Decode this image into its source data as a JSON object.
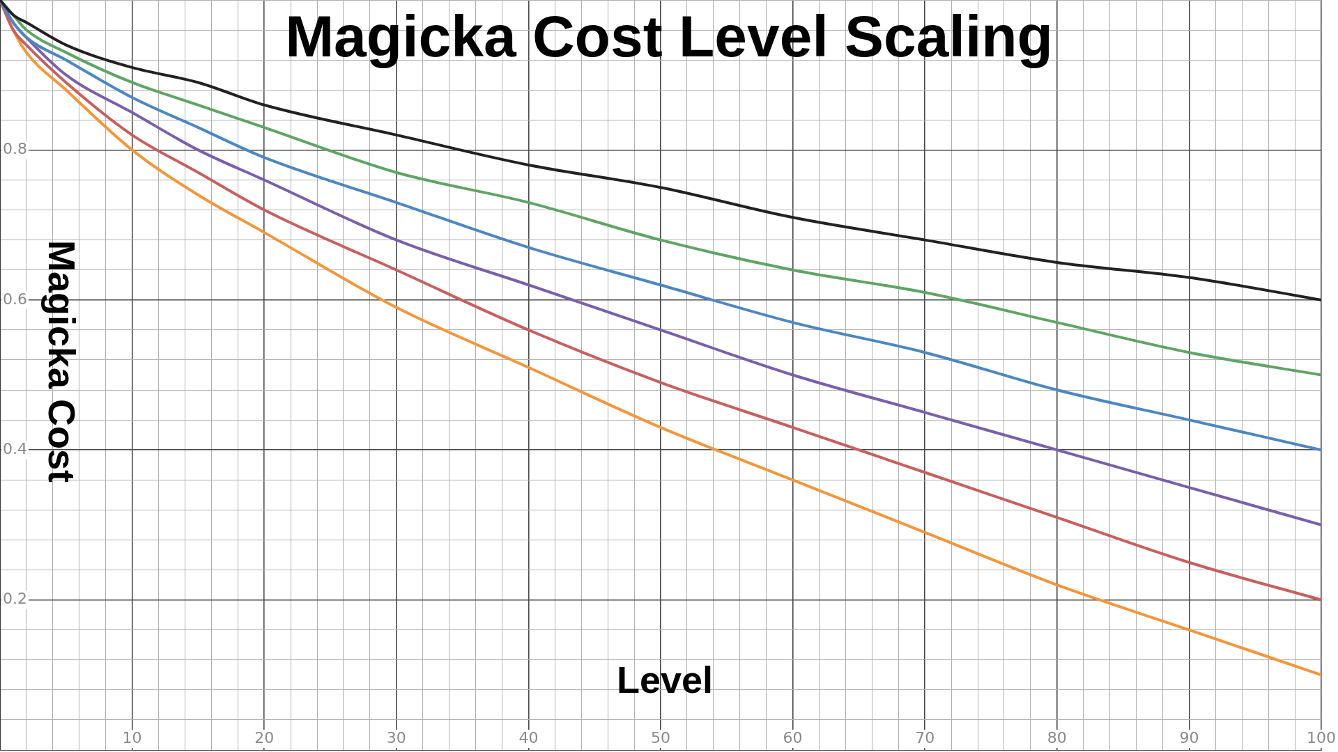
{
  "chart_data": {
    "type": "line",
    "title": "Magicka Cost Level Scaling",
    "xlabel": "Level",
    "ylabel": "Magicka Cost",
    "x": [
      0,
      1,
      2,
      5,
      10,
      15,
      20,
      30,
      40,
      50,
      60,
      70,
      80,
      90,
      100
    ],
    "series": [
      {
        "color": "#222222",
        "values": [
          1,
          0.98,
          0.97,
          0.94,
          0.91,
          0.89,
          0.86,
          0.82,
          0.78,
          0.75,
          0.71,
          0.68,
          0.65,
          0.63,
          0.6
        ]
      },
      {
        "color": "#5fa566",
        "values": [
          1,
          0.98,
          0.96,
          0.93,
          0.89,
          0.86,
          0.83,
          0.77,
          0.73,
          0.68,
          0.64,
          0.61,
          0.57,
          0.53,
          0.5
        ]
      },
      {
        "color": "#4c87c4",
        "values": [
          1,
          0.97,
          0.95,
          0.92,
          0.87,
          0.83,
          0.79,
          0.73,
          0.67,
          0.62,
          0.57,
          0.53,
          0.48,
          0.44,
          0.4
        ]
      },
      {
        "color": "#7a5fae",
        "values": [
          1,
          0.97,
          0.95,
          0.9,
          0.85,
          0.8,
          0.76,
          0.68,
          0.62,
          0.56,
          0.5,
          0.45,
          0.4,
          0.35,
          0.3
        ]
      },
      {
        "color": "#c95f5f",
        "values": [
          1,
          0.96,
          0.94,
          0.89,
          0.82,
          0.77,
          0.72,
          0.64,
          0.56,
          0.49,
          0.43,
          0.37,
          0.31,
          0.25,
          0.2
        ]
      },
      {
        "color": "#f5963c",
        "values": [
          1,
          0.96,
          0.93,
          0.88,
          0.8,
          0.74,
          0.69,
          0.59,
          0.51,
          0.43,
          0.36,
          0.29,
          0.22,
          0.16,
          0.1
        ]
      }
    ],
    "xlim": [
      0,
      100
    ],
    "ylim": [
      0,
      1
    ],
    "xticks": [
      {
        "value": 0,
        "label": null
      },
      {
        "value": 2,
        "label": null
      },
      {
        "value": 4,
        "label": null
      },
      {
        "value": 6,
        "label": null
      },
      {
        "value": 8,
        "label": null
      },
      10,
      {
        "value": 12,
        "label": null
      },
      {
        "value": 14,
        "label": null
      },
      {
        "value": 16,
        "label": null
      },
      {
        "value": 18,
        "label": null
      },
      20,
      {
        "value": 22,
        "label": null
      },
      {
        "value": 24,
        "label": null
      },
      {
        "value": 26,
        "label": null
      },
      {
        "value": 28,
        "label": null
      },
      30,
      {
        "value": 32,
        "label": null
      },
      {
        "value": 34,
        "label": null
      },
      {
        "value": 36,
        "label": null
      },
      {
        "value": 38,
        "label": null
      },
      40,
      {
        "value": 42,
        "label": null
      },
      {
        "value": 44,
        "label": null
      },
      {
        "value": 46,
        "label": null
      },
      {
        "value": 48,
        "label": null
      },
      50,
      {
        "value": 52,
        "label": null
      },
      {
        "value": 54,
        "label": null
      },
      {
        "value": 56,
        "label": null
      },
      {
        "value": 58,
        "label": null
      },
      60,
      {
        "value": 62,
        "label": null
      },
      {
        "value": 64,
        "label": null
      },
      {
        "value": 66,
        "label": null
      },
      {
        "value": 68,
        "label": null
      },
      70,
      {
        "value": 72,
        "label": null
      },
      {
        "value": 74,
        "label": null
      },
      {
        "value": 76,
        "label": null
      },
      {
        "value": 78,
        "label": null
      },
      80,
      {
        "value": 82,
        "label": null
      },
      {
        "value": 84,
        "label": null
      },
      {
        "value": 86,
        "label": null
      },
      {
        "value": 88,
        "label": null
      },
      90,
      {
        "value": 92,
        "label": null
      },
      {
        "value": 94,
        "label": null
      },
      {
        "value": 96,
        "label": null
      },
      {
        "value": 98,
        "label": null
      },
      100
    ],
    "yticks": [
      {
        "value": 0,
        "label": null
      },
      {
        "value": 0.04,
        "label": null
      },
      {
        "value": 0.08,
        "label": null
      },
      {
        "value": 0.12,
        "label": null
      },
      {
        "value": 0.16,
        "label": null
      },
      0.2,
      {
        "value": 0.24,
        "label": null
      },
      {
        "value": 0.28,
        "label": null
      },
      {
        "value": 0.32,
        "label": null
      },
      {
        "value": 0.36,
        "label": null
      },
      0.4,
      {
        "value": 0.44,
        "label": null
      },
      {
        "value": 0.48,
        "label": null
      },
      {
        "value": 0.52,
        "label": null
      },
      {
        "value": 0.56,
        "label": null
      },
      0.6,
      {
        "value": 0.64,
        "label": null
      },
      {
        "value": 0.68,
        "label": null
      },
      {
        "value": 0.72,
        "label": null
      },
      {
        "value": 0.76,
        "label": null
      },
      0.8,
      {
        "value": 0.84,
        "label": null
      },
      {
        "value": 0.88,
        "label": null
      },
      {
        "value": 0.92,
        "label": null
      },
      {
        "value": 0.96,
        "label": null
      },
      {
        "value": 1,
        "label": null
      }
    ],
    "grid": true,
    "legend": false,
    "marker": "none",
    "line_style": "solid"
  }
}
